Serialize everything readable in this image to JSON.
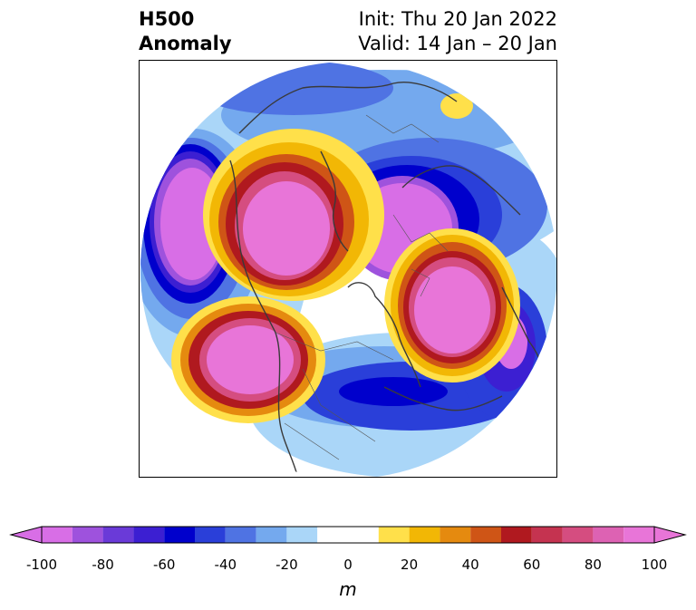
{
  "title": {
    "left_line1": "H500",
    "left_line2": "Anomaly",
    "right_line1": "Init: Thu 20 Jan 2022",
    "right_line2": "Valid: 14 Jan – 20 Jan"
  },
  "colorbar": {
    "unit": "m",
    "ticks": [
      "-100",
      "-80",
      "-60",
      "-40",
      "-20",
      "0",
      "20",
      "40",
      "60",
      "80",
      "100"
    ],
    "levels": [
      -100,
      -90,
      -80,
      -70,
      -60,
      -50,
      -40,
      -30,
      -20,
      -10,
      10,
      20,
      30,
      40,
      50,
      60,
      70,
      80,
      90,
      100
    ],
    "colors": [
      "#d86ee6",
      "#9e52dd",
      "#6a3ad8",
      "#3c1fd2",
      "#0000cc",
      "#2a3fd9",
      "#4f73e3",
      "#74a9ee",
      "#aad6f8",
      "#ffffff",
      "#ffe04a",
      "#f2b705",
      "#e58a0f",
      "#cf5516",
      "#b0191f",
      "#c53350",
      "#d54d80",
      "#dd62b3",
      "#e875d8"
    ],
    "extend_min_color": "#d86ee6",
    "extend_max_color": "#e875d8"
  }
}
